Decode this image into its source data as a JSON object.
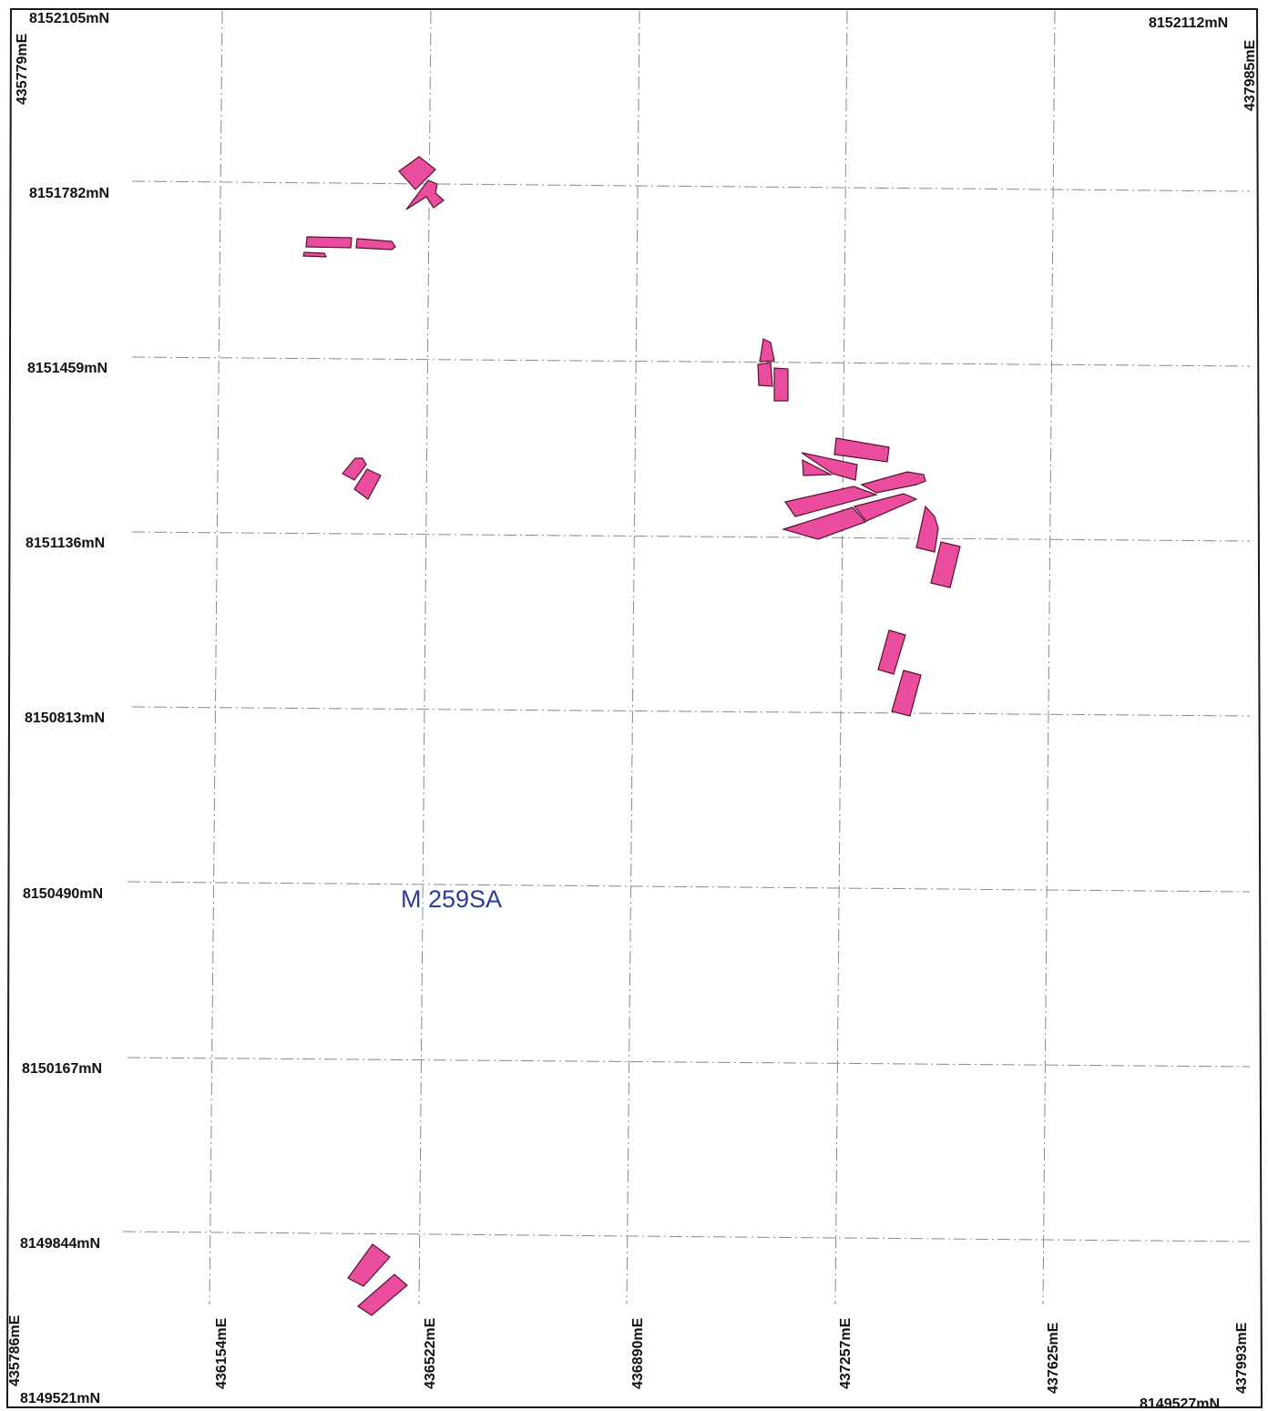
{
  "map": {
    "corners": {
      "top_left_northing": "8152105mN",
      "top_left_easting": "435779mE",
      "top_right_northing": "8152112mN",
      "top_right_easting": "437985mE",
      "bottom_left_northing": "8149521mN",
      "bottom_left_easting": "435786mE",
      "bottom_right_northing": "8149527mN",
      "bottom_right_easting": "437993mE"
    },
    "northing_labels": [
      "8151782mN",
      "8151459mN",
      "8151136mN",
      "8150813mN",
      "8150490mN",
      "8150167mN",
      "8149844mN"
    ],
    "easting_labels": [
      "436154mE",
      "436522mE",
      "436890mE",
      "437257mE",
      "437625mE"
    ],
    "lease_label": "M 259SA",
    "colors": {
      "polygon_fill": "#ea4d9d",
      "polygon_stroke": "#5a1030",
      "lease_label": "#2a3d9a",
      "grid": "#8a8a8a",
      "frame": "#1a1a1a"
    }
  }
}
